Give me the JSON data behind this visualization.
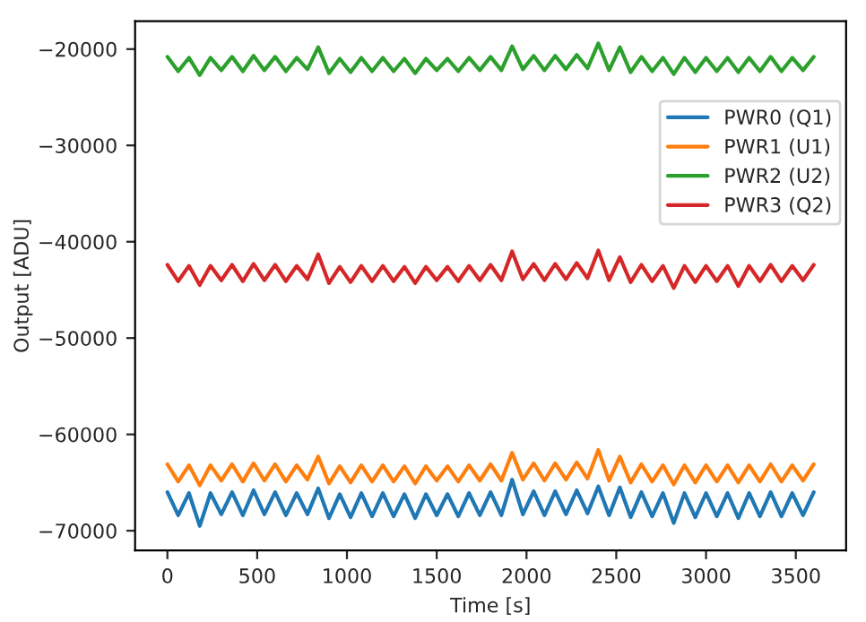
{
  "chart_data": {
    "type": "line",
    "xlabel": "Time [s]",
    "ylabel": "Output [ADU]",
    "xlim": [
      -180,
      3780
    ],
    "ylim": [
      -72050,
      -17100
    ],
    "xticks": [
      0,
      500,
      1000,
      1500,
      2000,
      2500,
      3000,
      3500
    ],
    "yticks": [
      {
        "value": -70000,
        "label": "−70000"
      },
      {
        "value": -60000,
        "label": "−60000"
      },
      {
        "value": -50000,
        "label": "−50000"
      },
      {
        "value": -40000,
        "label": "−40000"
      },
      {
        "value": -30000,
        "label": "−30000"
      },
      {
        "value": -20000,
        "label": "−20000"
      }
    ],
    "legend": "top right",
    "grid": false,
    "marker": "none",
    "line_style": "solid",
    "x": [
      0,
      60,
      120,
      180,
      240,
      300,
      360,
      420,
      480,
      540,
      600,
      660,
      720,
      780,
      840,
      900,
      960,
      1020,
      1080,
      1140,
      1200,
      1260,
      1320,
      1380,
      1440,
      1500,
      1560,
      1620,
      1680,
      1740,
      1800,
      1860,
      1920,
      1980,
      2040,
      2100,
      2160,
      2220,
      2280,
      2340,
      2400,
      2460,
      2520,
      2580,
      2640,
      2700,
      2760,
      2820,
      2880,
      2940,
      3000,
      3060,
      3120,
      3180,
      3240,
      3300,
      3360,
      3420,
      3480,
      3540,
      3600
    ],
    "series": [
      {
        "name": "PWR0 (Q1)",
        "color": "#1f77b4",
        "values": [
          -66000,
          -68400,
          -66100,
          -69500,
          -66100,
          -68300,
          -66000,
          -68400,
          -65800,
          -68300,
          -66000,
          -68400,
          -66100,
          -68300,
          -65600,
          -68700,
          -66200,
          -68600,
          -66100,
          -68500,
          -66100,
          -68500,
          -66200,
          -68700,
          -66200,
          -68400,
          -66200,
          -68500,
          -66100,
          -68400,
          -66000,
          -68400,
          -64700,
          -68300,
          -65900,
          -68400,
          -65900,
          -68300,
          -65800,
          -68200,
          -65400,
          -68400,
          -65500,
          -68600,
          -66000,
          -68500,
          -66100,
          -69200,
          -66100,
          -68600,
          -66100,
          -68500,
          -66100,
          -68700,
          -66100,
          -68500,
          -66000,
          -68500,
          -66100,
          -68400,
          -66000
        ]
      },
      {
        "name": "PWR1 (U1)",
        "color": "#ff7f0e",
        "values": [
          -63100,
          -64900,
          -63200,
          -65300,
          -63200,
          -64800,
          -63100,
          -64900,
          -63000,
          -64800,
          -63100,
          -64900,
          -63200,
          -64700,
          -62300,
          -65100,
          -63300,
          -65000,
          -63200,
          -64900,
          -63200,
          -64900,
          -63300,
          -65100,
          -63300,
          -64800,
          -63300,
          -64900,
          -63200,
          -64800,
          -63100,
          -64800,
          -61900,
          -64700,
          -63000,
          -64800,
          -63000,
          -64700,
          -62900,
          -64600,
          -61600,
          -64800,
          -62300,
          -65000,
          -63100,
          -64900,
          -63200,
          -65200,
          -63200,
          -65000,
          -63200,
          -64900,
          -63200,
          -65000,
          -63200,
          -64900,
          -63100,
          -64900,
          -63200,
          -64800,
          -63100
        ]
      },
      {
        "name": "PWR2 (U2)",
        "color": "#2ca02c",
        "values": [
          -20800,
          -22300,
          -20900,
          -22700,
          -20900,
          -22200,
          -20800,
          -22300,
          -20700,
          -22200,
          -20800,
          -22300,
          -20900,
          -22100,
          -19800,
          -22500,
          -21000,
          -22400,
          -20900,
          -22300,
          -20900,
          -22300,
          -21000,
          -22500,
          -21000,
          -22200,
          -21000,
          -22300,
          -20900,
          -22200,
          -20800,
          -22200,
          -19700,
          -22100,
          -20700,
          -22200,
          -20700,
          -22100,
          -20600,
          -22000,
          -19400,
          -22200,
          -19800,
          -22400,
          -20800,
          -22300,
          -20900,
          -22600,
          -20900,
          -22400,
          -20900,
          -22300,
          -20900,
          -22400,
          -20900,
          -22300,
          -20800,
          -22300,
          -20900,
          -22200,
          -20800
        ]
      },
      {
        "name": "PWR3 (Q2)",
        "color": "#d62728",
        "values": [
          -42400,
          -44100,
          -42500,
          -44500,
          -42500,
          -44000,
          -42400,
          -44100,
          -42300,
          -44000,
          -42400,
          -44100,
          -42500,
          -43900,
          -41300,
          -44300,
          -42600,
          -44200,
          -42500,
          -44100,
          -42500,
          -44100,
          -42600,
          -44300,
          -42600,
          -44000,
          -42600,
          -44100,
          -42500,
          -44000,
          -42400,
          -44000,
          -41000,
          -43900,
          -42300,
          -44000,
          -42300,
          -43900,
          -42200,
          -43800,
          -40900,
          -44000,
          -41600,
          -44200,
          -42400,
          -44100,
          -42500,
          -44800,
          -42500,
          -44200,
          -42500,
          -44100,
          -42500,
          -44600,
          -42500,
          -44100,
          -42400,
          -44100,
          -42500,
          -44000,
          -42400
        ]
      }
    ]
  }
}
